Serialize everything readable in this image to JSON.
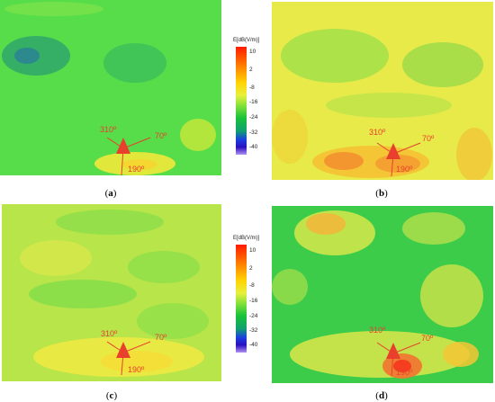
{
  "figure": {
    "panels": [
      {
        "id": "a",
        "caption": "a",
        "angles": [
          "310º",
          "70º",
          "190º"
        ]
      },
      {
        "id": "b",
        "caption": "b",
        "angles": [
          "310º",
          "70º",
          "190º"
        ]
      },
      {
        "id": "c",
        "caption": "c",
        "angles": [
          "310º",
          "70º",
          "190º"
        ]
      },
      {
        "id": "d",
        "caption": "d",
        "angles": [
          "310º",
          "70º",
          "190º"
        ]
      }
    ],
    "colorbar": {
      "title": "E[dB(V/m)]",
      "ticks": [
        "10",
        "2",
        "-8",
        "-16",
        "-24",
        "-32",
        "-40"
      ],
      "colors": [
        "#ff1a00",
        "#ff7a00",
        "#ffd200",
        "#e8f03a",
        "#7fe03a",
        "#18c23a",
        "#10a070",
        "#1a40e0",
        "#2a10c0",
        "#b090f0"
      ]
    },
    "arrow_color": "#e8402c"
  }
}
